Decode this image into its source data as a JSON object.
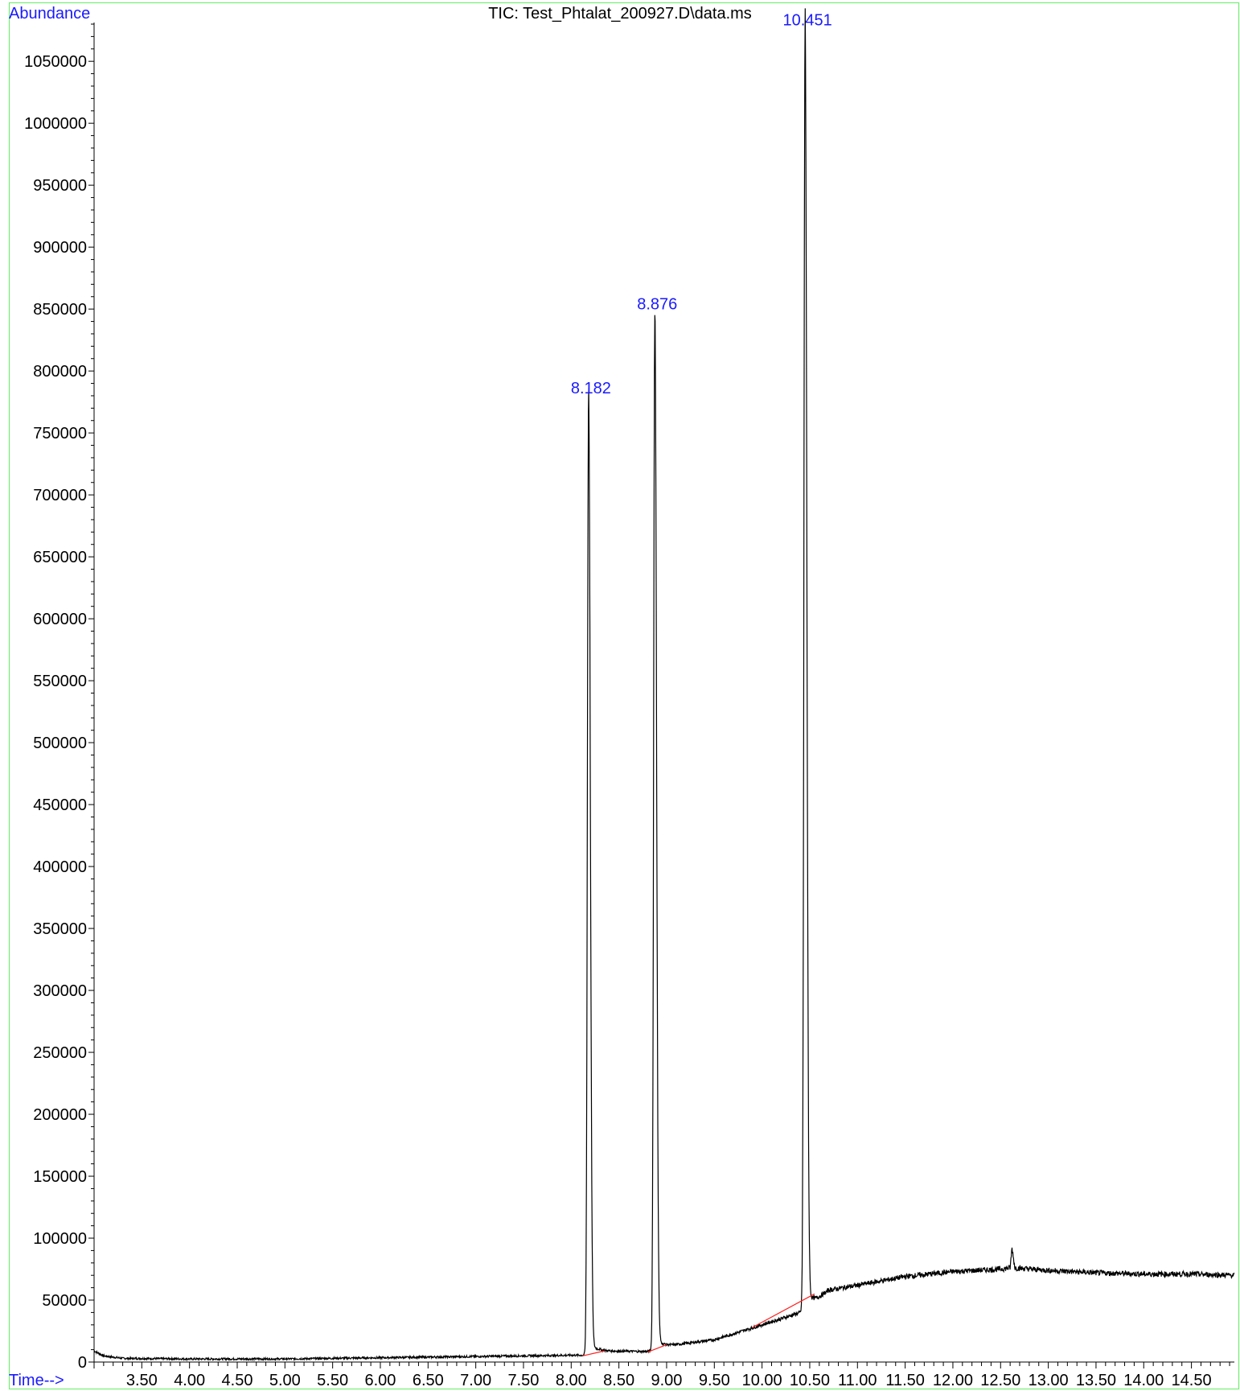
{
  "chart_data": {
    "type": "line",
    "title": "TIC: Test_Phtalat_200927.D\\data.ms",
    "ylabel": "Abundance",
    "xlabel": "Time-->",
    "xlim": [
      3.0,
      14.95
    ],
    "ylim": [
      0,
      1080000
    ],
    "x_ticks": [
      "3.50",
      "4.00",
      "4.50",
      "5.00",
      "5.50",
      "6.00",
      "6.50",
      "7.00",
      "7.50",
      "8.00",
      "8.50",
      "9.00",
      "9.50",
      "10.00",
      "10.50",
      "11.00",
      "11.50",
      "12.00",
      "12.50",
      "13.00",
      "13.50",
      "14.00",
      "14.50"
    ],
    "y_ticks": [
      "0",
      "50000",
      "100000",
      "150000",
      "200000",
      "250000",
      "300000",
      "350000",
      "400000",
      "450000",
      "500000",
      "550000",
      "600000",
      "650000",
      "700000",
      "750000",
      "800000",
      "850000",
      "900000",
      "950000",
      "1000000",
      "1050000"
    ],
    "peaks": [
      {
        "label": "8.182",
        "rt": 8.182,
        "apex": 778000
      },
      {
        "label": "8.876",
        "rt": 8.876,
        "apex": 846000
      },
      {
        "label": "10.451",
        "rt": 10.451,
        "apex": 1075000
      }
    ],
    "baseline_points": [
      [
        3.0,
        9000
      ],
      [
        3.1,
        5000
      ],
      [
        3.3,
        3000
      ],
      [
        4.0,
        2500
      ],
      [
        5.0,
        2500
      ],
      [
        6.0,
        3500
      ],
      [
        7.0,
        4500
      ],
      [
        8.0,
        5500
      ],
      [
        8.12,
        5500
      ],
      [
        8.3,
        9000
      ],
      [
        8.8,
        8500
      ],
      [
        9.0,
        13000
      ],
      [
        9.5,
        18000
      ],
      [
        10.0,
        30000
      ],
      [
        10.4,
        40000
      ],
      [
        10.7,
        58000
      ],
      [
        11.0,
        62000
      ],
      [
        11.5,
        69000
      ],
      [
        12.0,
        73000
      ],
      [
        12.5,
        75000
      ],
      [
        12.6,
        76000
      ],
      [
        12.62,
        92000
      ],
      [
        12.65,
        76000
      ],
      [
        13.0,
        74000
      ],
      [
        13.5,
        72000
      ],
      [
        14.0,
        71000
      ],
      [
        14.5,
        71000
      ],
      [
        14.95,
        70000
      ]
    ],
    "minor_peaks": [
      {
        "rt": 12.62,
        "apex": 92000
      }
    ],
    "integration_baselines": [
      {
        "x": [
          8.12,
          8.35
        ],
        "y": [
          5000,
          9000
        ]
      },
      {
        "x": [
          8.8,
          9.0
        ],
        "y": [
          8000,
          14000
        ]
      },
      {
        "x": [
          9.9,
          10.55
        ],
        "y": [
          28000,
          55000
        ]
      }
    ],
    "colors": {
      "trace": "#000000",
      "integration": "#ff2020",
      "labels": "#1a1aff",
      "frame": "#66ee66"
    },
    "grid": false
  }
}
